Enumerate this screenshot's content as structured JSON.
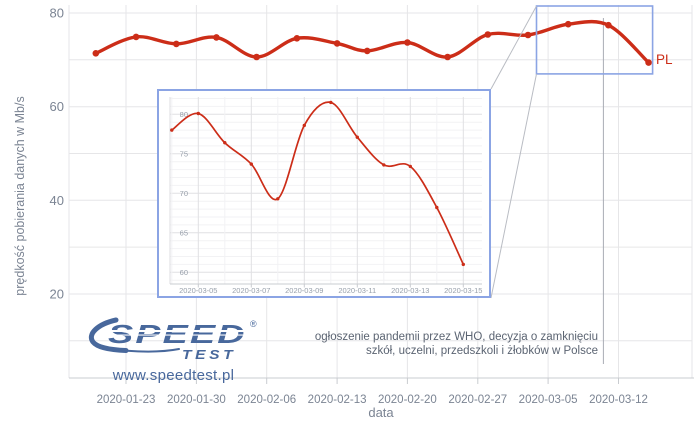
{
  "chart": {
    "y_axis_title": "prędkość pobierania danych w Mb/s",
    "x_axis_title": "data",
    "series_end_label": "PL"
  },
  "annotation": {
    "line1": "ogłoszenie pandemii przez WHO, decyzja o zamknięciu",
    "line2": "szkół, uczelni, przedszkoli i żłobków w Polsce",
    "pointer_date": "2020-03-11"
  },
  "logo": {
    "word_top": "SPEED",
    "word_bottom": "TEST",
    "registered_mark": "®",
    "website": "www.speedtest.pl"
  },
  "colors": {
    "series_red": "#cc2d18",
    "zoom_box_blue": "#8ba4e4",
    "logo_blue": "#48689c",
    "grid_gray": "#e6e6e8",
    "minor_grid_gray": "#f2f2f4",
    "axis_line_gray": "#c9ccd0",
    "axis_text_gray": "#7b8493",
    "inset_text_gray": "#98a0ab",
    "annotation_text": "#5b6472",
    "connector_gray": "#b9bcc3",
    "pointer_gray": "#a9adb5"
  },
  "chart_data": [
    {
      "id": "main",
      "type": "line",
      "name": "PL",
      "xlabel": "data",
      "ylabel": "prędkość pobierania danych w Mb/s",
      "x": [
        "2020-01-20",
        "2020-01-24",
        "2020-01-28",
        "2020-02-01",
        "2020-02-05",
        "2020-02-09",
        "2020-02-13",
        "2020-02-16",
        "2020-02-20",
        "2020-02-24",
        "2020-02-28",
        "2020-03-03",
        "2020-03-07",
        "2020-03-11",
        "2020-03-15"
      ],
      "values": [
        71.4,
        74.9,
        73.4,
        74.8,
        70.6,
        74.6,
        73.5,
        71.9,
        73.7,
        70.6,
        75.4,
        75.3,
        77.6,
        77.4,
        69.4
      ],
      "x_ticks": [
        "2020-01-23",
        "2020-01-30",
        "2020-02-06",
        "2020-02-13",
        "2020-02-20",
        "2020-02-27",
        "2020-03-05",
        "2020-03-12"
      ],
      "y_ticks": [
        20,
        40,
        60,
        80
      ],
      "ylim": [
        2,
        82
      ],
      "grid": true,
      "legend_position": "line-end",
      "zoom_region": {
        "x0": "2020-03-04",
        "x1": "2020-03-15",
        "y0": 67,
        "y1": 81.5
      }
    },
    {
      "id": "inset-zoom",
      "type": "line",
      "name": "PL",
      "x": [
        "2020-03-04",
        "2020-03-05",
        "2020-03-06",
        "2020-03-07",
        "2020-03-08",
        "2020-03-09",
        "2020-03-10",
        "2020-03-11",
        "2020-03-12",
        "2020-03-13",
        "2020-03-14",
        "2020-03-15"
      ],
      "values": [
        78.0,
        80.1,
        76.4,
        73.7,
        69.3,
        78.6,
        81.5,
        77.1,
        73.6,
        73.4,
        68.2,
        61.0
      ],
      "x_ticks": [
        "2020-03-05",
        "2020-03-07",
        "2020-03-09",
        "2020-03-11",
        "2020-03-13",
        "2020-03-15"
      ],
      "y_ticks": [
        60,
        65,
        70,
        75,
        80
      ],
      "ylim": [
        58.5,
        82.2
      ],
      "grid": true
    }
  ]
}
